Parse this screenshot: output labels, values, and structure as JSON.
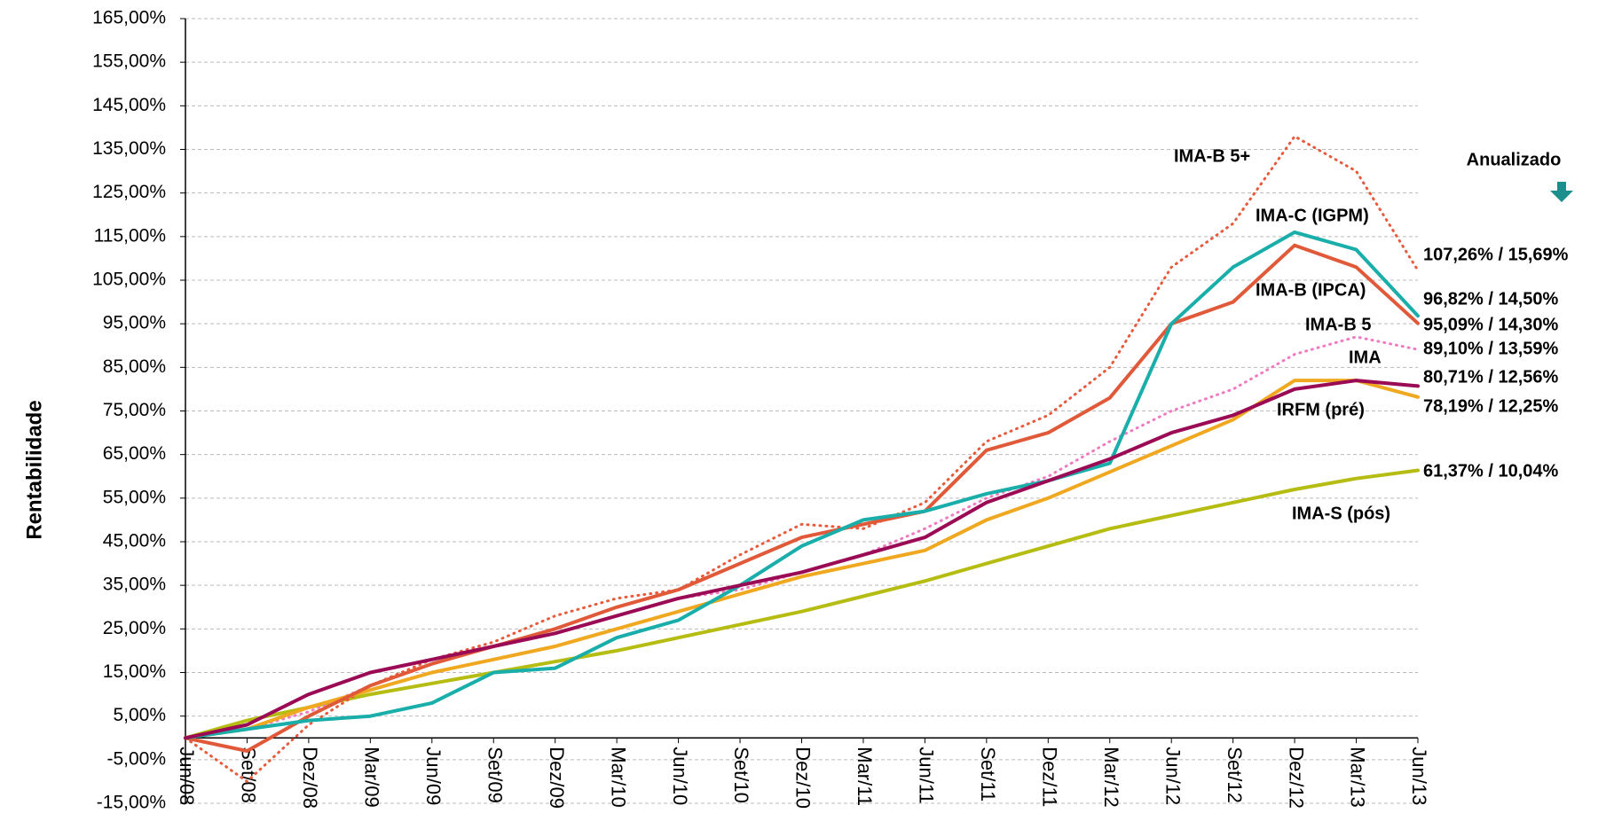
{
  "chart_data": {
    "type": "line",
    "y_label": "Rentabilidade",
    "annotation": "Anualizado",
    "categories": [
      "Jun/08",
      "Set/08",
      "Dez/08",
      "Mar/09",
      "Jun/09",
      "Set/09",
      "Dez/09",
      "Mar/10",
      "Jun/10",
      "Set/10",
      "Dez/10",
      "Mar/11",
      "Jun/11",
      "Set/11",
      "Dez/11",
      "Mar/12",
      "Jun/12",
      "Set/12",
      "Dez/12",
      "Mar/13",
      "Jun/13"
    ],
    "ylim": [
      -15,
      165
    ],
    "yticks": [
      {
        "value": -15,
        "label": "-15,00%"
      },
      {
        "value": -5,
        "label": "-5,00%"
      },
      {
        "value": 5,
        "label": "5,00%"
      },
      {
        "value": 15,
        "label": "15,00%"
      },
      {
        "value": 25,
        "label": "25,00%"
      },
      {
        "value": 35,
        "label": "35,00%"
      },
      {
        "value": 45,
        "label": "45,00%"
      },
      {
        "value": 55,
        "label": "55,00%"
      },
      {
        "value": 65,
        "label": "65,00%"
      },
      {
        "value": 75,
        "label": "75,00%"
      },
      {
        "value": 85,
        "label": "85,00%"
      },
      {
        "value": 95,
        "label": "95,00%"
      },
      {
        "value": 105,
        "label": "105,00%"
      },
      {
        "value": 115,
        "label": "115,00%"
      },
      {
        "value": 125,
        "label": "125,00%"
      },
      {
        "value": 135,
        "label": "135,00%"
      },
      {
        "value": 145,
        "label": "145,00%"
      },
      {
        "value": 155,
        "label": "155,00%"
      },
      {
        "value": 165,
        "label": "165,00%"
      }
    ],
    "grid": true,
    "series": [
      {
        "name": "IMA-S (pós)",
        "color": "#b5bc12",
        "dotted": false,
        "end_label": "61,37% / 10,04%",
        "values": [
          0,
          4,
          7,
          10,
          12.5,
          15,
          17.5,
          20,
          23,
          26,
          29,
          32.5,
          36,
          40,
          44,
          48,
          51,
          54,
          57,
          59.5,
          61.37
        ]
      },
      {
        "name": "IMA-B 5+",
        "color": "#e85a3a",
        "dotted": true,
        "end_label": "107,26% / 15,69%",
        "values": [
          0,
          -10,
          3,
          12,
          18,
          22,
          28,
          32,
          34,
          42,
          49,
          48,
          54,
          68,
          74,
          85,
          108,
          118,
          138,
          130,
          107.26
        ]
      },
      {
        "name": "IMA-B 5",
        "color": "#f07ac0",
        "dotted": true,
        "end_label": "89,10% / 13,59%",
        "values": [
          0,
          2,
          6,
          12,
          17,
          21,
          24,
          28,
          32,
          34,
          38,
          42,
          48,
          55,
          60,
          68,
          75,
          80,
          88,
          92,
          89.1
        ]
      },
      {
        "name": "IMA",
        "color": "#f0a820",
        "dotted": false,
        "end_label": "78,19% / 12,25%",
        "values": [
          0,
          2,
          7,
          11,
          15,
          18,
          21,
          25,
          29,
          33,
          37,
          40,
          43,
          50,
          55,
          61,
          67,
          73,
          82,
          82,
          78.19
        ]
      },
      {
        "name": "IMA-B (IPCA)",
        "color": "#e05a3a",
        "dotted": false,
        "end_label": "95,09% / 14,30%",
        "values": [
          0,
          -3,
          5,
          12,
          17,
          21,
          25,
          30,
          34,
          40,
          46,
          49,
          52,
          66,
          70,
          78,
          95,
          100,
          113,
          108,
          95.09
        ]
      },
      {
        "name": "IMA-C (IGPM)",
        "color": "#1aaeaa",
        "dotted": false,
        "end_label": "96,82% / 14,50%",
        "values": [
          0,
          2,
          4,
          5,
          8,
          15,
          16,
          23,
          27,
          35,
          44,
          50,
          52,
          56,
          59,
          63,
          95,
          108,
          116,
          112,
          96.82
        ]
      },
      {
        "name": "IRFM (pré)",
        "color": "#9b0a55",
        "dotted": false,
        "end_label": "80,71% / 12,56%",
        "values": [
          0,
          3,
          10,
          15,
          18,
          21,
          24,
          28,
          32,
          35,
          38,
          42,
          46,
          54,
          59,
          64,
          70,
          74,
          80,
          82,
          80.71
        ]
      }
    ]
  }
}
